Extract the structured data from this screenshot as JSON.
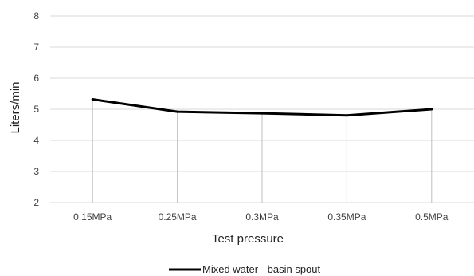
{
  "chart_data": {
    "type": "line",
    "categories": [
      "0.15MPa",
      "0.25MPa",
      "0.3MPa",
      "0.35MPa",
      "0.5MPa"
    ],
    "series": [
      {
        "name": "Mixed water - basin spout",
        "values": [
          5.32,
          4.92,
          4.87,
          4.8,
          5.0
        ],
        "color": "#000000"
      }
    ],
    "xlabel": "Test pressure",
    "ylabel": "Liters/min",
    "ylim": [
      2,
      8
    ],
    "yticks": [
      "2",
      "3",
      "4",
      "5",
      "6",
      "7",
      "8"
    ],
    "grid": true,
    "legend": "bottom"
  }
}
